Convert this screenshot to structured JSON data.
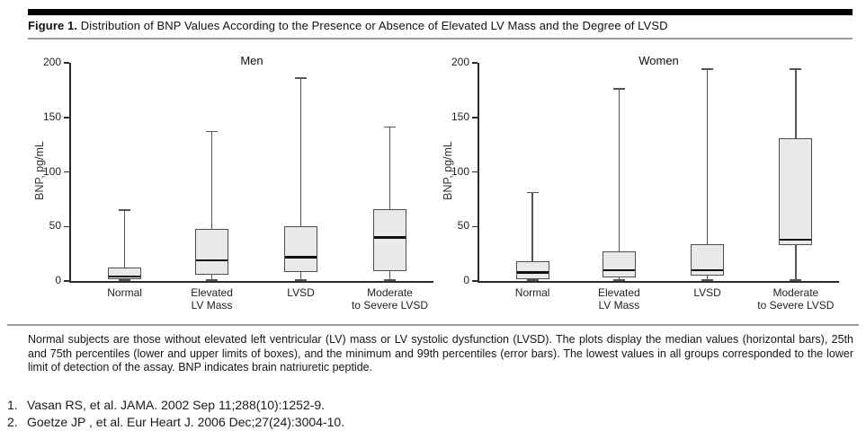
{
  "figure": {
    "label": "Figure 1.",
    "title": "Distribution of BNP Values According to the Presence or Absence of Elevated LV Mass and the Degree of LVSD",
    "footnote": "Normal subjects are those without elevated left ventricular (LV) mass or LV systolic dysfunction (LVSD). The plots display the median values (horizontal bars), 25th and 75th percentiles (lower and upper limits of boxes), and the minimum and 99th percentiles (error bars). The lowest values in all groups corresponded to the lower limit of detection of the assay. BNP indicates brain natriuretic peptide."
  },
  "chart_data": [
    {
      "type": "boxplot",
      "title": "Men",
      "ylabel": "BNP, pg/mL",
      "ylim": [
        0,
        200
      ],
      "yticks": [
        0,
        50,
        100,
        150,
        200
      ],
      "grid": false,
      "categories": [
        "Normal",
        "Elevated LV Mass",
        "LVSD",
        "Moderate to Severe LVSD"
      ],
      "series": [
        {
          "category": "Normal",
          "label_lines": [
            "Normal"
          ],
          "min": 1,
          "q1": 2,
          "median": 4,
          "q3": 12,
          "p99": 65
        },
        {
          "category": "Elevated LV Mass",
          "label_lines": [
            "Elevated",
            "LV Mass"
          ],
          "min": 1,
          "q1": 6,
          "median": 19,
          "q3": 48,
          "p99": 137
        },
        {
          "category": "LVSD",
          "label_lines": [
            "LVSD"
          ],
          "min": 1,
          "q1": 8,
          "median": 22,
          "q3": 50,
          "p99": 186
        },
        {
          "category": "Moderate to Severe LVSD",
          "label_lines": [
            "Moderate",
            "to Severe LVSD"
          ],
          "min": 1,
          "q1": 9,
          "median": 40,
          "q3": 66,
          "p99": 141
        }
      ]
    },
    {
      "type": "boxplot",
      "title": "Women",
      "ylabel": "BNP, pg/mL",
      "ylim": [
        0,
        200
      ],
      "yticks": [
        0,
        50,
        100,
        150,
        200
      ],
      "grid": false,
      "categories": [
        "Normal",
        "Elevated LV Mass",
        "LVSD",
        "Moderate to Severe LVSD"
      ],
      "series": [
        {
          "category": "Normal",
          "label_lines": [
            "Normal"
          ],
          "min": 1,
          "q1": 2,
          "median": 8,
          "q3": 18,
          "p99": 81
        },
        {
          "category": "Elevated LV Mass",
          "label_lines": [
            "Elevated",
            "LV Mass"
          ],
          "min": 1,
          "q1": 3,
          "median": 10,
          "q3": 27,
          "p99": 176
        },
        {
          "category": "LVSD",
          "label_lines": [
            "LVSD"
          ],
          "min": 1,
          "q1": 5,
          "median": 10,
          "q3": 34,
          "p99": 194
        },
        {
          "category": "Moderate to Severe LVSD",
          "label_lines": [
            "Moderate",
            "to Severe LVSD"
          ],
          "min": 1,
          "q1": 33,
          "median": 38,
          "q3": 131,
          "p99": 194
        }
      ]
    }
  ],
  "references": [
    {
      "num": "1.",
      "text": "Vasan RS, et al. JAMA. 2002 Sep 11;288(10):1252-9."
    },
    {
      "num": "2.",
      "text": "Goetze JP , et al. Eur Heart J. 2006 Dec;27(24):3004-10."
    }
  ],
  "colors": {
    "header_bar": "#000000",
    "divider": "#9c9c9c",
    "axis": "#2b2b2b",
    "whisker": "#555555",
    "box_fill": "#e9e9e9",
    "box_border": "#4d4d4d",
    "median": "#111111",
    "text": "#111111"
  }
}
